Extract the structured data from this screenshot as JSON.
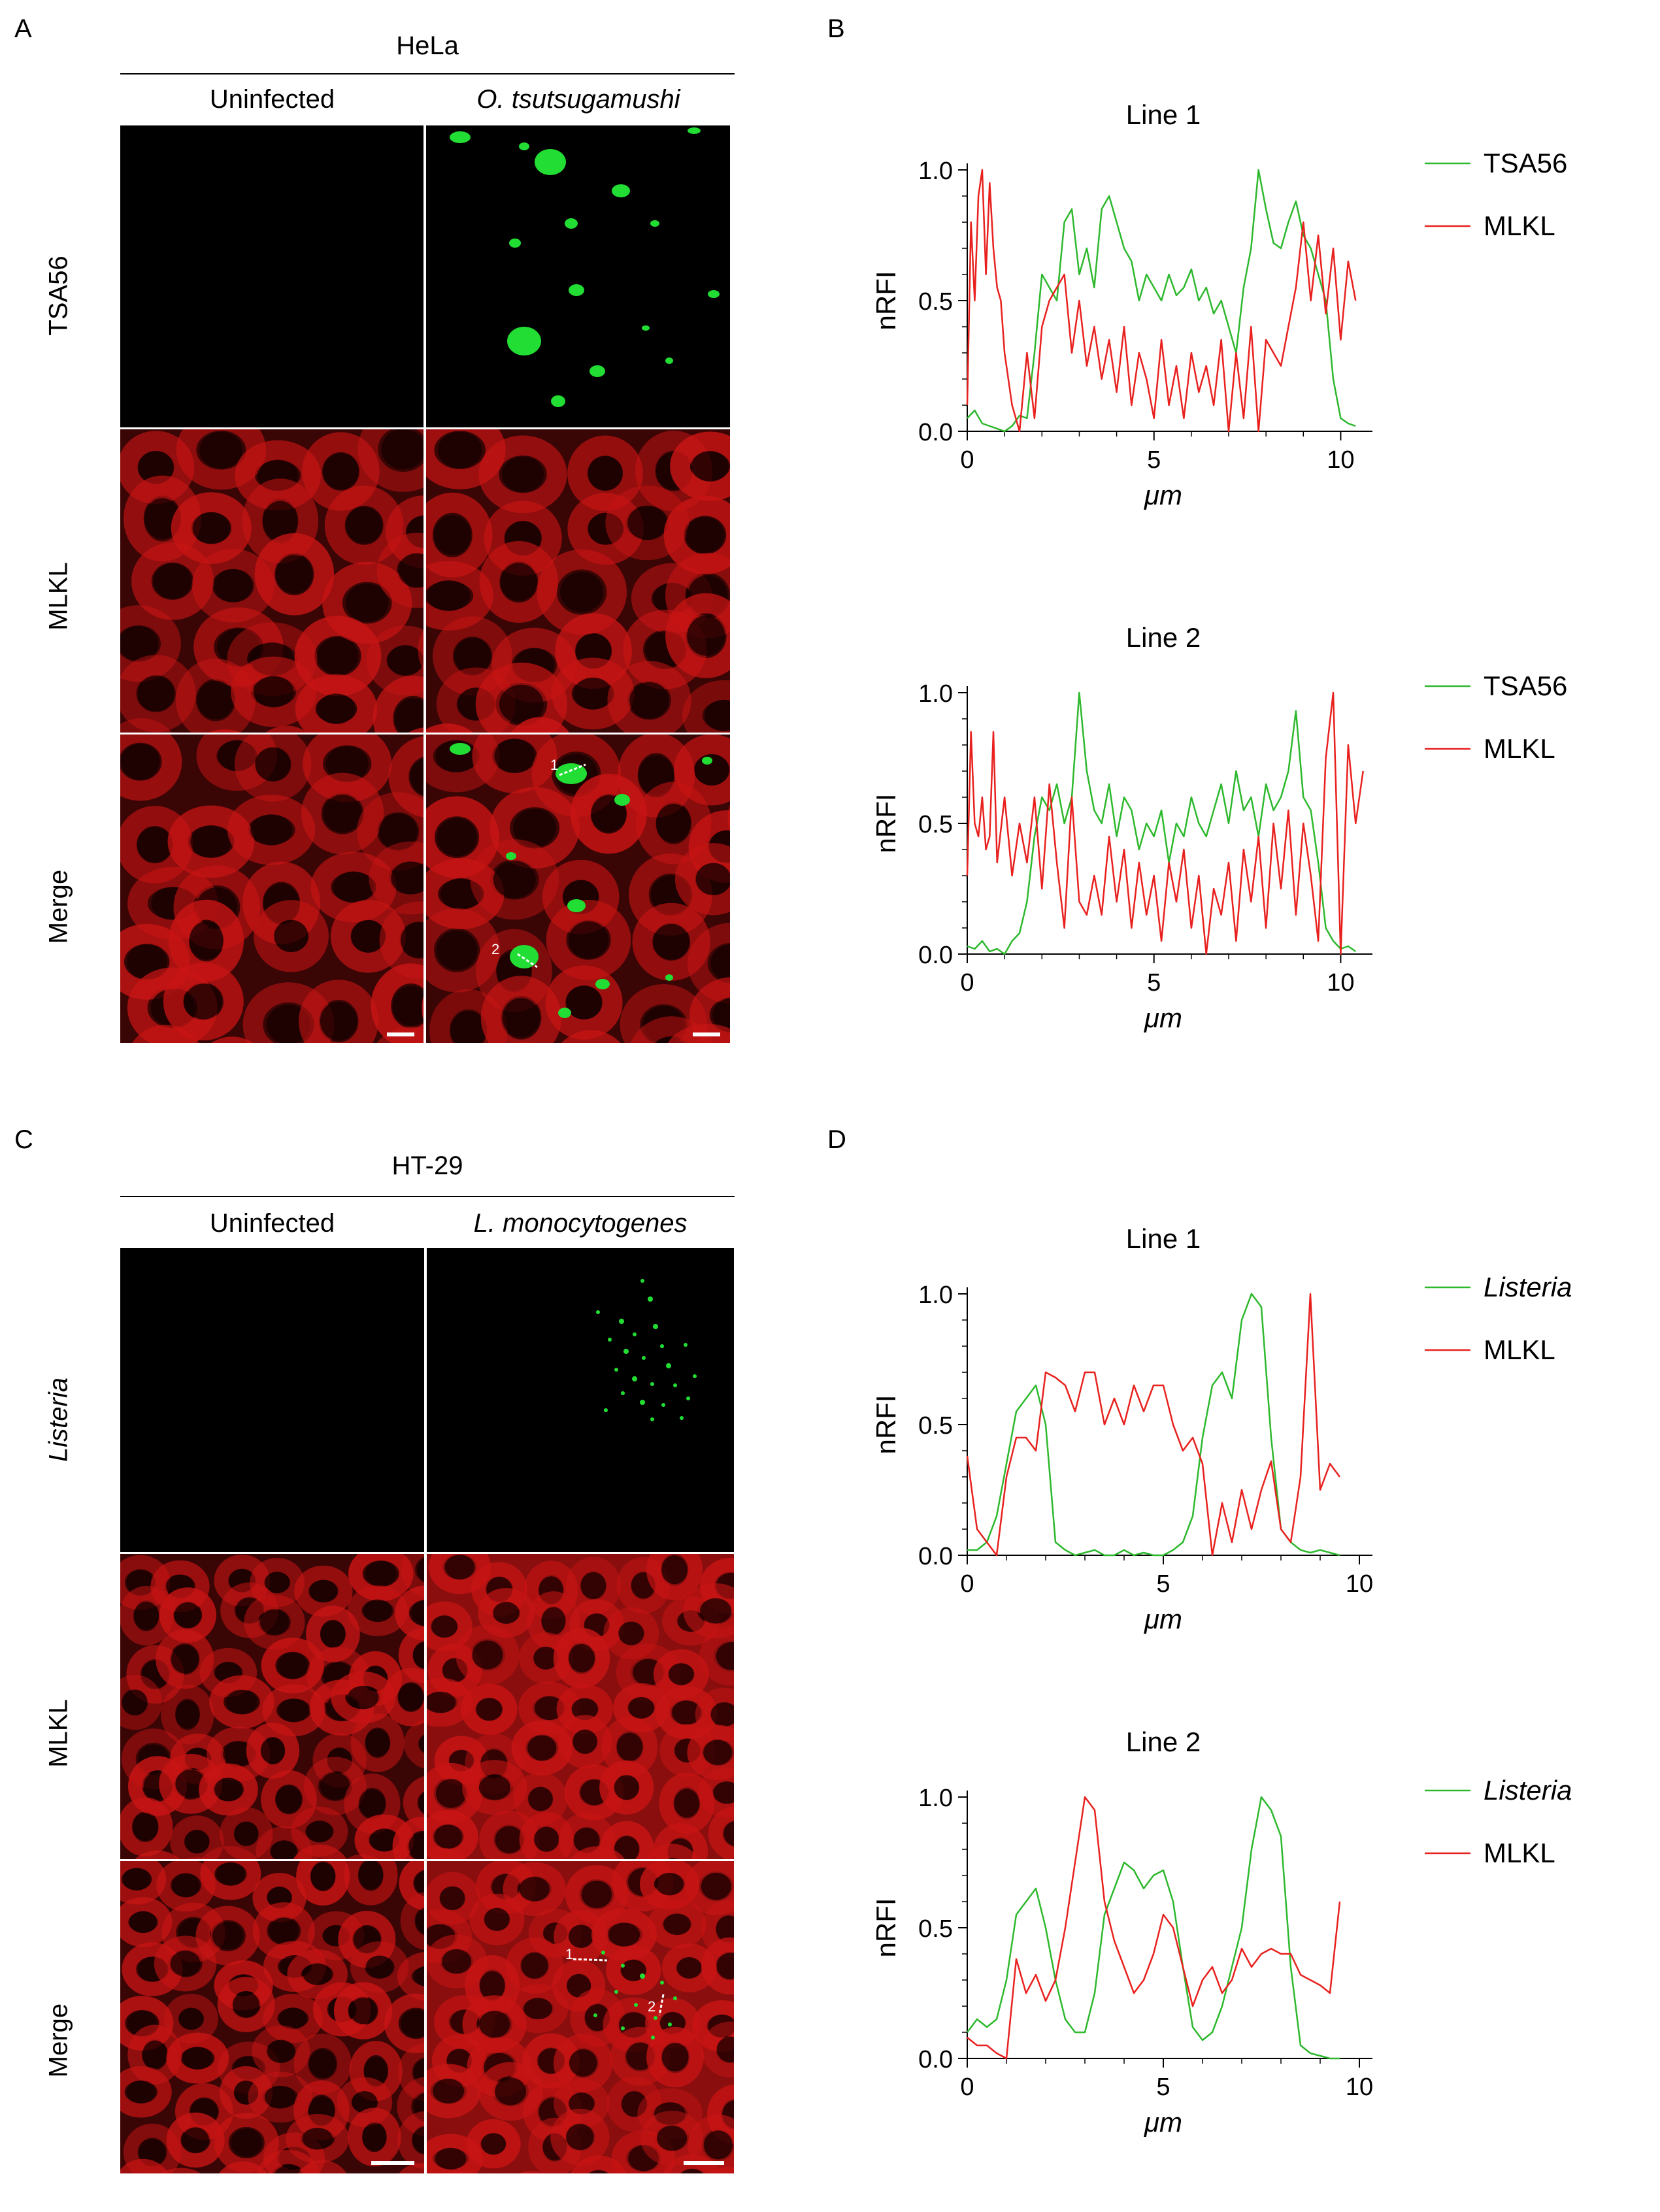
{
  "panels": {
    "A": {
      "label": "A",
      "cell_line": "HeLa",
      "columns": [
        "Uninfected",
        "O. tsutsugamushi"
      ],
      "rows": [
        "TSA56",
        "MLKL",
        "Merge"
      ],
      "line_markers": [
        "1",
        "2"
      ]
    },
    "C": {
      "label": "C",
      "cell_line": "HT-29",
      "columns": [
        "Uninfected",
        "L. monocytogenes"
      ],
      "rows": [
        "Listeria",
        "MLKL",
        "Merge"
      ],
      "line_markers": [
        "1",
        "2"
      ]
    },
    "B": {
      "label": "B"
    },
    "D": {
      "label": "D"
    }
  },
  "colors": {
    "green": "#2db82d",
    "red": "#e8211e",
    "micro_red": "#c81414",
    "micro_green": "#22dd33"
  },
  "chart_data": [
    {
      "id": "B1",
      "type": "line",
      "title": "Line 1",
      "xlabel": "μm",
      "ylabel": "nRFI",
      "xlim": [
        0,
        10.5
      ],
      "ylim": [
        0,
        1.0
      ],
      "xticks": [
        "0",
        "5",
        "10"
      ],
      "yticks": [
        "0.0",
        "0.5",
        "1.0"
      ],
      "legend_position": "right",
      "series": [
        {
          "name": "TSA56",
          "italic": false,
          "color": "#2db82d",
          "x": [
            0,
            0.2,
            0.4,
            0.6,
            0.8,
            1.0,
            1.2,
            1.4,
            1.6,
            1.8,
            2.0,
            2.2,
            2.4,
            2.6,
            2.8,
            3.0,
            3.2,
            3.4,
            3.6,
            3.8,
            4.0,
            4.2,
            4.4,
            4.6,
            4.8,
            5.0,
            5.2,
            5.4,
            5.6,
            5.8,
            6.0,
            6.2,
            6.4,
            6.6,
            6.8,
            7.0,
            7.2,
            7.4,
            7.6,
            7.8,
            8.0,
            8.2,
            8.4,
            8.6,
            8.8,
            9.0,
            9.2,
            9.4,
            9.6,
            9.8,
            10.0,
            10.2,
            10.4
          ],
          "y": [
            0.05,
            0.08,
            0.03,
            0.02,
            0.01,
            0.0,
            0.02,
            0.06,
            0.05,
            0.3,
            0.6,
            0.55,
            0.5,
            0.8,
            0.85,
            0.6,
            0.7,
            0.55,
            0.85,
            0.9,
            0.8,
            0.7,
            0.65,
            0.5,
            0.6,
            0.55,
            0.5,
            0.6,
            0.52,
            0.55,
            0.62,
            0.5,
            0.55,
            0.45,
            0.5,
            0.4,
            0.3,
            0.55,
            0.7,
            1.0,
            0.85,
            0.72,
            0.7,
            0.8,
            0.88,
            0.75,
            0.7,
            0.6,
            0.5,
            0.2,
            0.05,
            0.03,
            0.02
          ]
        },
        {
          "name": "MLKL",
          "italic": false,
          "color": "#e8211e",
          "x": [
            0,
            0.1,
            0.2,
            0.3,
            0.4,
            0.5,
            0.6,
            0.7,
            0.8,
            0.9,
            1.0,
            1.2,
            1.4,
            1.6,
            1.8,
            2.0,
            2.2,
            2.4,
            2.6,
            2.8,
            3.0,
            3.2,
            3.4,
            3.6,
            3.8,
            4.0,
            4.2,
            4.4,
            4.6,
            4.8,
            5.0,
            5.2,
            5.4,
            5.6,
            5.8,
            6.0,
            6.2,
            6.4,
            6.6,
            6.8,
            7.0,
            7.2,
            7.4,
            7.6,
            7.8,
            8.0,
            8.2,
            8.4,
            8.6,
            8.8,
            9.0,
            9.2,
            9.4,
            9.6,
            9.8,
            10.0,
            10.2,
            10.4
          ],
          "y": [
            0.1,
            0.8,
            0.5,
            0.9,
            1.0,
            0.6,
            0.95,
            0.7,
            0.55,
            0.5,
            0.3,
            0.1,
            0.0,
            0.3,
            0.05,
            0.4,
            0.5,
            0.55,
            0.6,
            0.3,
            0.5,
            0.25,
            0.4,
            0.2,
            0.35,
            0.15,
            0.4,
            0.1,
            0.3,
            0.2,
            0.05,
            0.35,
            0.1,
            0.25,
            0.05,
            0.3,
            0.15,
            0.25,
            0.1,
            0.35,
            0.0,
            0.3,
            0.05,
            0.4,
            0.0,
            0.35,
            0.3,
            0.25,
            0.4,
            0.55,
            0.8,
            0.5,
            0.75,
            0.45,
            0.7,
            0.35,
            0.65,
            0.5
          ]
        }
      ]
    },
    {
      "id": "B2",
      "type": "line",
      "title": "Line 2",
      "xlabel": "μm",
      "ylabel": "nRFI",
      "xlim": [
        0,
        10.5
      ],
      "ylim": [
        0,
        1.0
      ],
      "xticks": [
        "0",
        "5",
        "10"
      ],
      "yticks": [
        "0.0",
        "0.5",
        "1.0"
      ],
      "legend_position": "right",
      "series": [
        {
          "name": "TSA56",
          "italic": false,
          "color": "#2db82d",
          "x": [
            0,
            0.2,
            0.4,
            0.6,
            0.8,
            1.0,
            1.2,
            1.4,
            1.6,
            1.8,
            2.0,
            2.2,
            2.4,
            2.6,
            2.8,
            3.0,
            3.2,
            3.4,
            3.6,
            3.8,
            4.0,
            4.2,
            4.4,
            4.6,
            4.8,
            5.0,
            5.2,
            5.4,
            5.6,
            5.8,
            6.0,
            6.2,
            6.4,
            6.6,
            6.8,
            7.0,
            7.2,
            7.4,
            7.6,
            7.8,
            8.0,
            8.2,
            8.4,
            8.6,
            8.8,
            9.0,
            9.2,
            9.4,
            9.6,
            9.8,
            10.0,
            10.2,
            10.4
          ],
          "y": [
            0.03,
            0.02,
            0.05,
            0.01,
            0.02,
            0.0,
            0.05,
            0.08,
            0.2,
            0.45,
            0.6,
            0.55,
            0.65,
            0.5,
            0.6,
            1.0,
            0.7,
            0.55,
            0.5,
            0.65,
            0.45,
            0.6,
            0.55,
            0.4,
            0.5,
            0.45,
            0.55,
            0.35,
            0.5,
            0.45,
            0.6,
            0.5,
            0.45,
            0.55,
            0.65,
            0.5,
            0.7,
            0.55,
            0.6,
            0.45,
            0.65,
            0.55,
            0.6,
            0.7,
            0.93,
            0.6,
            0.55,
            0.35,
            0.1,
            0.05,
            0.02,
            0.03,
            0.01
          ]
        },
        {
          "name": "MLKL",
          "italic": false,
          "color": "#e8211e",
          "x": [
            0,
            0.1,
            0.2,
            0.3,
            0.4,
            0.5,
            0.6,
            0.7,
            0.8,
            1.0,
            1.2,
            1.4,
            1.6,
            1.8,
            2.0,
            2.2,
            2.4,
            2.6,
            2.8,
            3.0,
            3.2,
            3.4,
            3.6,
            3.8,
            4.0,
            4.2,
            4.4,
            4.6,
            4.8,
            5.0,
            5.2,
            5.4,
            5.6,
            5.8,
            6.0,
            6.2,
            6.4,
            6.6,
            6.8,
            7.0,
            7.2,
            7.4,
            7.6,
            7.8,
            8.0,
            8.2,
            8.4,
            8.6,
            8.8,
            9.0,
            9.2,
            9.4,
            9.6,
            9.8,
            10.0,
            10.2,
            10.4,
            10.6
          ],
          "y": [
            0.3,
            0.85,
            0.5,
            0.45,
            0.6,
            0.4,
            0.45,
            0.85,
            0.35,
            0.6,
            0.3,
            0.5,
            0.35,
            0.6,
            0.25,
            0.65,
            0.35,
            0.1,
            0.6,
            0.2,
            0.15,
            0.3,
            0.15,
            0.45,
            0.2,
            0.4,
            0.1,
            0.35,
            0.15,
            0.3,
            0.05,
            0.35,
            0.2,
            0.4,
            0.1,
            0.3,
            0.0,
            0.25,
            0.15,
            0.35,
            0.05,
            0.4,
            0.2,
            0.45,
            0.1,
            0.5,
            0.25,
            0.55,
            0.15,
            0.5,
            0.3,
            0.05,
            0.75,
            1.0,
            0.0,
            0.8,
            0.5,
            0.7
          ]
        }
      ]
    },
    {
      "id": "D1",
      "type": "line",
      "title": "Line 1",
      "xlabel": "μm",
      "ylabel": "nRFI",
      "xlim": [
        0,
        10
      ],
      "ylim": [
        0,
        1.0
      ],
      "xticks": [
        "0",
        "5",
        "10"
      ],
      "yticks": [
        "0.0",
        "0.5",
        "1.0"
      ],
      "legend_position": "right",
      "series": [
        {
          "name": "Listeria",
          "italic": true,
          "color": "#2db82d",
          "x": [
            0,
            0.25,
            0.5,
            0.75,
            1.0,
            1.25,
            1.5,
            1.75,
            2.0,
            2.25,
            2.5,
            2.75,
            3.0,
            3.25,
            3.5,
            3.75,
            4.0,
            4.25,
            4.5,
            4.75,
            5.0,
            5.25,
            5.5,
            5.75,
            6.0,
            6.25,
            6.5,
            6.75,
            7.0,
            7.25,
            7.5,
            7.75,
            8.0,
            8.25,
            8.5,
            8.75,
            9.0,
            9.25,
            9.5
          ],
          "y": [
            0.02,
            0.02,
            0.05,
            0.15,
            0.35,
            0.55,
            0.6,
            0.65,
            0.5,
            0.05,
            0.02,
            0.0,
            0.01,
            0.02,
            0.0,
            0.0,
            0.02,
            0.0,
            0.01,
            0.0,
            0.0,
            0.02,
            0.05,
            0.15,
            0.45,
            0.65,
            0.7,
            0.6,
            0.9,
            1.0,
            0.95,
            0.45,
            0.1,
            0.05,
            0.02,
            0.01,
            0.02,
            0.01,
            0.0
          ]
        },
        {
          "name": "MLKL",
          "italic": false,
          "color": "#e8211e",
          "x": [
            0,
            0.25,
            0.5,
            0.75,
            1.0,
            1.25,
            1.5,
            1.75,
            2.0,
            2.25,
            2.5,
            2.75,
            3.0,
            3.25,
            3.5,
            3.75,
            4.0,
            4.25,
            4.5,
            4.75,
            5.0,
            5.25,
            5.5,
            5.75,
            6.0,
            6.25,
            6.5,
            6.75,
            7.0,
            7.25,
            7.5,
            7.75,
            8.0,
            8.25,
            8.5,
            8.75,
            9.0,
            9.25,
            9.5
          ],
          "y": [
            0.38,
            0.1,
            0.05,
            0.0,
            0.3,
            0.45,
            0.45,
            0.4,
            0.7,
            0.68,
            0.65,
            0.55,
            0.7,
            0.7,
            0.5,
            0.6,
            0.5,
            0.65,
            0.55,
            0.65,
            0.65,
            0.5,
            0.4,
            0.45,
            0.35,
            0.0,
            0.2,
            0.05,
            0.25,
            0.1,
            0.25,
            0.36,
            0.1,
            0.05,
            0.3,
            1.0,
            0.25,
            0.35,
            0.3
          ]
        }
      ]
    },
    {
      "id": "D2",
      "type": "line",
      "title": "Line 2",
      "xlabel": "μm",
      "ylabel": "nRFI",
      "xlim": [
        0,
        10
      ],
      "ylim": [
        0,
        1.0
      ],
      "xticks": [
        "0",
        "5",
        "10"
      ],
      "yticks": [
        "0.0",
        "0.5",
        "1.0"
      ],
      "legend_position": "right",
      "series": [
        {
          "name": "Listeria",
          "italic": true,
          "color": "#2db82d",
          "x": [
            0,
            0.25,
            0.5,
            0.75,
            1.0,
            1.25,
            1.5,
            1.75,
            2.0,
            2.25,
            2.5,
            2.75,
            3.0,
            3.25,
            3.5,
            3.75,
            4.0,
            4.25,
            4.5,
            4.75,
            5.0,
            5.25,
            5.5,
            5.75,
            6.0,
            6.25,
            6.5,
            6.75,
            7.0,
            7.25,
            7.5,
            7.75,
            8.0,
            8.25,
            8.5,
            8.75,
            9.0,
            9.25,
            9.5
          ],
          "y": [
            0.1,
            0.15,
            0.12,
            0.15,
            0.3,
            0.55,
            0.6,
            0.65,
            0.5,
            0.3,
            0.15,
            0.1,
            0.1,
            0.25,
            0.55,
            0.65,
            0.75,
            0.72,
            0.65,
            0.7,
            0.72,
            0.6,
            0.35,
            0.12,
            0.07,
            0.1,
            0.2,
            0.35,
            0.5,
            0.8,
            1.0,
            0.95,
            0.85,
            0.35,
            0.05,
            0.02,
            0.01,
            0.0,
            0.0
          ]
        },
        {
          "name": "MLKL",
          "italic": false,
          "color": "#e8211e",
          "x": [
            0,
            0.25,
            0.5,
            0.75,
            1.0,
            1.25,
            1.5,
            1.75,
            2.0,
            2.25,
            2.5,
            2.75,
            3.0,
            3.25,
            3.5,
            3.75,
            4.0,
            4.25,
            4.5,
            4.75,
            5.0,
            5.25,
            5.5,
            5.75,
            6.0,
            6.25,
            6.5,
            6.75,
            7.0,
            7.25,
            7.5,
            7.75,
            8.0,
            8.25,
            8.5,
            8.75,
            9.0,
            9.25,
            9.5
          ],
          "y": [
            0.08,
            0.05,
            0.05,
            0.02,
            0.0,
            0.38,
            0.25,
            0.32,
            0.22,
            0.3,
            0.5,
            0.75,
            1.0,
            0.95,
            0.6,
            0.45,
            0.35,
            0.25,
            0.3,
            0.4,
            0.55,
            0.5,
            0.35,
            0.2,
            0.3,
            0.35,
            0.25,
            0.3,
            0.42,
            0.35,
            0.4,
            0.42,
            0.4,
            0.4,
            0.32,
            0.3,
            0.28,
            0.25,
            0.6
          ]
        }
      ]
    }
  ]
}
